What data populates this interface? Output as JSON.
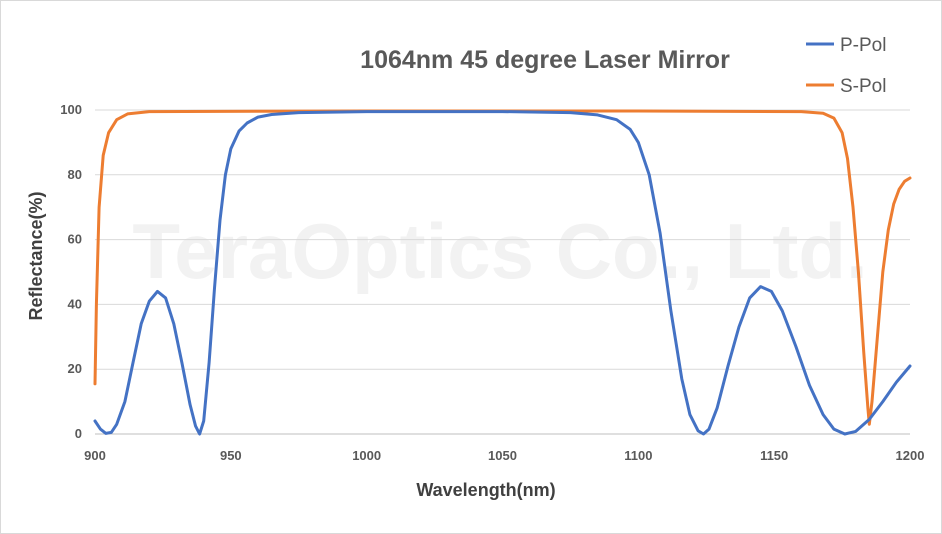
{
  "watermark": "TeraOptics Co., Ltd.",
  "chart_data": {
    "type": "line",
    "title": "1064nm 45 degree Laser Mirror",
    "xlabel": "Wavelength(nm)",
    "ylabel": "Reflectance(%)",
    "xlim": [
      900,
      1200
    ],
    "ylim": [
      0,
      100
    ],
    "xticks": [
      900,
      950,
      1000,
      1050,
      1100,
      1150,
      1200
    ],
    "yticks": [
      0,
      20,
      40,
      60,
      80,
      100
    ],
    "grid": "horizontal",
    "legend_position": "top-right",
    "series": [
      {
        "name": "P-Pol",
        "color": "#4472C4",
        "points": [
          [
            900,
            4
          ],
          [
            902,
            1.5
          ],
          [
            904,
            0.2
          ],
          [
            906,
            0.5
          ],
          [
            908,
            3
          ],
          [
            911,
            10
          ],
          [
            914,
            22
          ],
          [
            917,
            34
          ],
          [
            920,
            41
          ],
          [
            923,
            44
          ],
          [
            926,
            42
          ],
          [
            929,
            34
          ],
          [
            932,
            22
          ],
          [
            935,
            9
          ],
          [
            937,
            2.5
          ],
          [
            938.5,
            0
          ],
          [
            940,
            4
          ],
          [
            942,
            22
          ],
          [
            944,
            45
          ],
          [
            946,
            66
          ],
          [
            948,
            80
          ],
          [
            950,
            88
          ],
          [
            953,
            93.5
          ],
          [
            956,
            96
          ],
          [
            960,
            97.8
          ],
          [
            965,
            98.6
          ],
          [
            975,
            99.2
          ],
          [
            1000,
            99.5
          ],
          [
            1050,
            99.5
          ],
          [
            1075,
            99.2
          ],
          [
            1085,
            98.5
          ],
          [
            1092,
            97
          ],
          [
            1097,
            94
          ],
          [
            1100,
            90
          ],
          [
            1104,
            80
          ],
          [
            1108,
            62
          ],
          [
            1112,
            38
          ],
          [
            1116,
            17
          ],
          [
            1119,
            6
          ],
          [
            1122,
            1
          ],
          [
            1124,
            0
          ],
          [
            1126,
            1.5
          ],
          [
            1129,
            8
          ],
          [
            1133,
            21
          ],
          [
            1137,
            33
          ],
          [
            1141,
            42
          ],
          [
            1145,
            45.5
          ],
          [
            1149,
            44
          ],
          [
            1153,
            38
          ],
          [
            1158,
            27
          ],
          [
            1163,
            15
          ],
          [
            1168,
            6
          ],
          [
            1172,
            1.5
          ],
          [
            1176,
            0
          ],
          [
            1180,
            0.8
          ],
          [
            1185,
            4.5
          ],
          [
            1190,
            10
          ],
          [
            1195,
            16
          ],
          [
            1200,
            21
          ]
        ]
      },
      {
        "name": "S-Pol",
        "color": "#ED7D31",
        "points": [
          [
            900,
            15.5
          ],
          [
            900.5,
            40
          ],
          [
            901.5,
            70
          ],
          [
            903,
            86
          ],
          [
            905,
            93
          ],
          [
            908,
            97
          ],
          [
            912,
            98.8
          ],
          [
            920,
            99.5
          ],
          [
            1000,
            99.7
          ],
          [
            1100,
            99.7
          ],
          [
            1160,
            99.5
          ],
          [
            1168,
            99
          ],
          [
            1172,
            97.5
          ],
          [
            1175,
            93
          ],
          [
            1177,
            85
          ],
          [
            1179,
            70
          ],
          [
            1181,
            50
          ],
          [
            1183,
            25
          ],
          [
            1184.5,
            8
          ],
          [
            1185,
            3
          ],
          [
            1186,
            10
          ],
          [
            1188,
            30
          ],
          [
            1190,
            50
          ],
          [
            1192,
            63
          ],
          [
            1194,
            71
          ],
          [
            1196,
            75.5
          ],
          [
            1198,
            78
          ],
          [
            1200,
            79
          ]
        ]
      }
    ]
  }
}
